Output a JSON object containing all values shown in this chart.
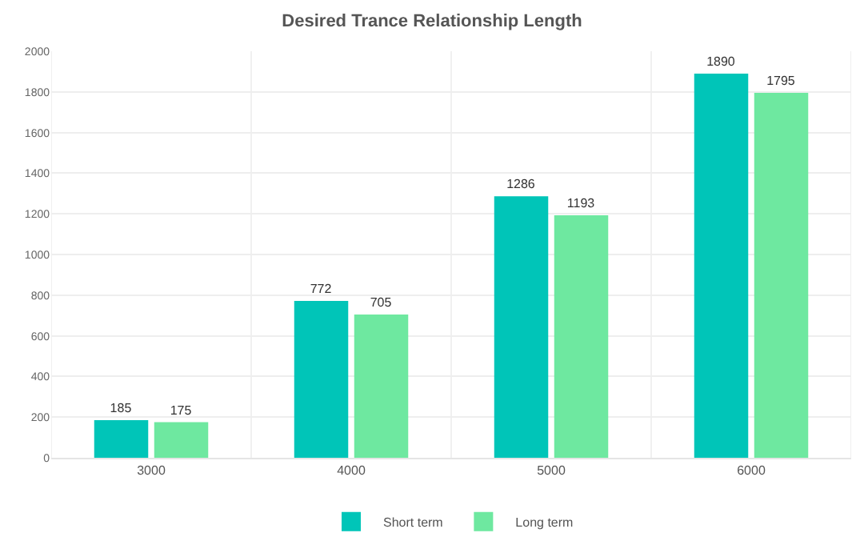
{
  "chart_data": {
    "type": "bar",
    "title": "Desired Trance Relationship Length",
    "categories": [
      "3000",
      "4000",
      "5000",
      "6000"
    ],
    "series": [
      {
        "name": "Short term",
        "color": "#00c5b8",
        "values": [
          185,
          772,
          1286,
          1890
        ]
      },
      {
        "name": "Long term",
        "color": "#6ee8a0",
        "values": [
          175,
          705,
          1193,
          1795
        ]
      }
    ],
    "ylim": [
      0,
      2000
    ],
    "yticks": [
      0,
      200,
      400,
      600,
      800,
      1000,
      1200,
      1400,
      1600,
      1800,
      2000
    ],
    "data_labels": true,
    "grid": true,
    "legend": "bottom"
  }
}
